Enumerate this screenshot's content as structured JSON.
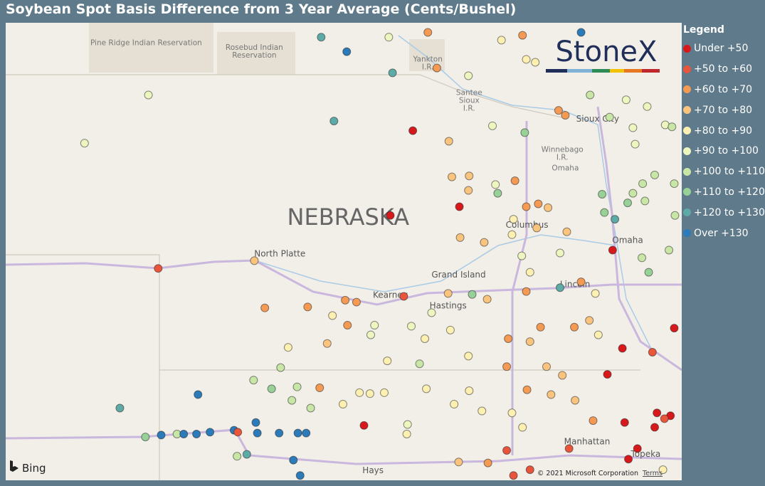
{
  "map": {
    "title": "Soybean Spot Basis Difference from 3 Year Average (Cents/Bushel)",
    "logo": "StoneX",
    "attribution": {
      "provider": "Bing",
      "copyright": "© 2021 Microsoft Corporation",
      "terms": "Terms"
    },
    "lon_lim": [
      -104.08,
      -95.08
    ],
    "lat_lim": [
      38.83,
      43.58
    ],
    "legend": {
      "title": "Legend",
      "bins": [
        {
          "label": "Under +50",
          "color": "#d7191c"
        },
        {
          "label": "+50 to +60",
          "color": "#e8553a"
        },
        {
          "label": "+60 to +70",
          "color": "#f59a53"
        },
        {
          "label": "+70 to +80",
          "color": "#fac47e"
        },
        {
          "label": "+80 to +90",
          "color": "#fdf0b1"
        },
        {
          "label": "+90 to +100",
          "color": "#eef6bf"
        },
        {
          "label": "+100 to +110",
          "color": "#c8e6a5"
        },
        {
          "label": "+110 to +120",
          "color": "#98d198"
        },
        {
          "label": "+120 to +130",
          "color": "#5eaaa6"
        },
        {
          "label": "Over +130",
          "color": "#2b7bba"
        }
      ]
    },
    "labels": [
      {
        "lines": [
          "Pine Ridge Indian Reservation"
        ],
        "lon": -102.21,
        "lat": 43.37,
        "size": "small"
      },
      {
        "lines": [
          "Rosebud Indian",
          "Reservation"
        ],
        "lon": -100.77,
        "lat": 43.28,
        "size": "small"
      },
      {
        "lines": [
          "Yankton",
          "I.R."
        ],
        "lon": -98.46,
        "lat": 43.16,
        "size": "small"
      },
      {
        "lines": [
          "Santee",
          "Sioux",
          "I.R."
        ],
        "lon": -97.91,
        "lat": 42.77,
        "size": "small"
      },
      {
        "lines": [
          "Sioux City"
        ],
        "lon": -96.2,
        "lat": 42.58,
        "size": "city"
      },
      {
        "lines": [
          "Winnebago",
          "I.R."
        ],
        "lon": -96.67,
        "lat": 42.22,
        "size": "small"
      },
      {
        "lines": [
          "Omaha"
        ],
        "lon": -96.63,
        "lat": 42.07,
        "size": "small"
      },
      {
        "lines": [
          "NEBRASKA"
        ],
        "lon": -99.52,
        "lat": 41.55,
        "size": "state"
      },
      {
        "lines": [
          "North Platte"
        ],
        "lon": -100.43,
        "lat": 41.18,
        "size": "city"
      },
      {
        "lines": [
          "Columbus"
        ],
        "lon": -97.14,
        "lat": 41.48,
        "size": "city"
      },
      {
        "lines": [
          "Grand Island"
        ],
        "lon": -98.05,
        "lat": 40.96,
        "size": "city"
      },
      {
        "lines": [
          "Kearney"
        ],
        "lon": -98.96,
        "lat": 40.75,
        "size": "city"
      },
      {
        "lines": [
          "Hastings"
        ],
        "lon": -98.19,
        "lat": 40.64,
        "size": "city"
      },
      {
        "lines": [
          "Lincoln"
        ],
        "lon": -96.5,
        "lat": 40.86,
        "size": "city"
      },
      {
        "lines": [
          "Omaha"
        ],
        "lon": -95.8,
        "lat": 41.32,
        "size": "city"
      },
      {
        "lines": [
          "Manhattan"
        ],
        "lon": -96.34,
        "lat": 39.23,
        "size": "city"
      },
      {
        "lines": [
          "Topeka"
        ],
        "lon": -95.56,
        "lat": 39.1,
        "size": "city"
      },
      {
        "lines": [
          "Hays"
        ],
        "lon": -99.19,
        "lat": 38.93,
        "size": "city"
      }
    ],
    "points": [
      {
        "lon": -99.88,
        "lat": 43.43,
        "bin": 8
      },
      {
        "lon": -99.54,
        "lat": 43.28,
        "bin": 9
      },
      {
        "lon": -98.93,
        "lat": 43.06,
        "bin": 8
      },
      {
        "lon": -98.98,
        "lat": 43.43,
        "bin": 5
      },
      {
        "lon": -98.46,
        "lat": 43.48,
        "bin": 2
      },
      {
        "lon": -98.34,
        "lat": 43.11,
        "bin": 2
      },
      {
        "lon": -97.92,
        "lat": 43.03,
        "bin": 5
      },
      {
        "lon": -102.18,
        "lat": 42.83,
        "bin": 5
      },
      {
        "lon": -103.03,
        "lat": 42.33,
        "bin": 5
      },
      {
        "lon": -99.71,
        "lat": 42.56,
        "bin": 8
      },
      {
        "lon": -98.66,
        "lat": 42.46,
        "bin": 0
      },
      {
        "lon": -98.18,
        "lat": 42.35,
        "bin": 3
      },
      {
        "lon": -97.6,
        "lat": 42.51,
        "bin": 5
      },
      {
        "lon": -97.17,
        "lat": 42.44,
        "bin": 7
      },
      {
        "lon": -97.2,
        "lat": 43.45,
        "bin": 2
      },
      {
        "lon": -96.42,
        "lat": 43.48,
        "bin": 9
      },
      {
        "lon": -97.48,
        "lat": 43.4,
        "bin": 4
      },
      {
        "lon": -97.15,
        "lat": 43.2,
        "bin": 4
      },
      {
        "lon": -97.03,
        "lat": 43.17,
        "bin": 4
      },
      {
        "lon": -96.72,
        "lat": 42.67,
        "bin": 2
      },
      {
        "lon": -96.63,
        "lat": 42.62,
        "bin": 2
      },
      {
        "lon": -96.04,
        "lat": 42.6,
        "bin": 6
      },
      {
        "lon": -96.3,
        "lat": 42.83,
        "bin": 6
      },
      {
        "lon": -95.82,
        "lat": 42.78,
        "bin": 5
      },
      {
        "lon": -95.54,
        "lat": 42.71,
        "bin": 5
      },
      {
        "lon": -95.73,
        "lat": 42.49,
        "bin": 5
      },
      {
        "lon": -95.3,
        "lat": 42.52,
        "bin": 5
      },
      {
        "lon": -95.21,
        "lat": 42.5,
        "bin": 6
      },
      {
        "lon": -95.7,
        "lat": 42.32,
        "bin": 5
      },
      {
        "lon": -95.44,
        "lat": 42.0,
        "bin": 6
      },
      {
        "lon": -95.6,
        "lat": 41.91,
        "bin": 6
      },
      {
        "lon": -95.18,
        "lat": 41.91,
        "bin": 6
      },
      {
        "lon": -96.14,
        "lat": 41.8,
        "bin": 7
      },
      {
        "lon": -96.11,
        "lat": 41.61,
        "bin": 7
      },
      {
        "lon": -95.8,
        "lat": 41.71,
        "bin": 7
      },
      {
        "lon": -95.73,
        "lat": 41.81,
        "bin": 6
      },
      {
        "lon": -95.57,
        "lat": 41.73,
        "bin": 6
      },
      {
        "lon": -95.17,
        "lat": 41.58,
        "bin": 6
      },
      {
        "lon": -95.97,
        "lat": 41.54,
        "bin": 8
      },
      {
        "lon": -96.0,
        "lat": 41.22,
        "bin": 0
      },
      {
        "lon": -95.52,
        "lat": 40.99,
        "bin": 7
      },
      {
        "lon": -95.25,
        "lat": 41.22,
        "bin": 6
      },
      {
        "lon": -95.61,
        "lat": 41.14,
        "bin": 6
      },
      {
        "lon": -95.18,
        "lat": 40.41,
        "bin": 0
      },
      {
        "lon": -95.87,
        "lat": 40.2,
        "bin": 0
      },
      {
        "lon": -95.47,
        "lat": 40.16,
        "bin": 1
      },
      {
        "lon": -96.07,
        "lat": 39.93,
        "bin": 0
      },
      {
        "lon": -95.41,
        "lat": 39.53,
        "bin": 0
      },
      {
        "lon": -95.23,
        "lat": 39.5,
        "bin": 0
      },
      {
        "lon": -95.31,
        "lat": 39.47,
        "bin": 1
      },
      {
        "lon": -95.44,
        "lat": 39.38,
        "bin": 0
      },
      {
        "lon": -95.84,
        "lat": 39.43,
        "bin": 0
      },
      {
        "lon": -95.67,
        "lat": 39.16,
        "bin": 0
      },
      {
        "lon": -95.79,
        "lat": 39.05,
        "bin": 0
      },
      {
        "lon": -96.58,
        "lat": 39.16,
        "bin": 1
      },
      {
        "lon": -96.26,
        "lat": 39.45,
        "bin": 2
      },
      {
        "lon": -97.1,
        "lat": 38.94,
        "bin": 1
      },
      {
        "lon": -97.41,
        "lat": 39.14,
        "bin": 1
      },
      {
        "lon": -97.32,
        "lat": 38.88,
        "bin": 1
      },
      {
        "lon": -97.66,
        "lat": 39.01,
        "bin": 2
      },
      {
        "lon": -98.05,
        "lat": 39.02,
        "bin": 3
      },
      {
        "lon": -98.96,
        "lat": 41.58,
        "bin": 0
      },
      {
        "lon": -98.04,
        "lat": 41.67,
        "bin": 0
      },
      {
        "lon": -97.3,
        "lat": 41.94,
        "bin": 2
      },
      {
        "lon": -98.14,
        "lat": 41.98,
        "bin": 3
      },
      {
        "lon": -97.91,
        "lat": 41.99,
        "bin": 3
      },
      {
        "lon": -97.56,
        "lat": 41.9,
        "bin": 5
      },
      {
        "lon": -97.53,
        "lat": 41.81,
        "bin": 7
      },
      {
        "lon": -97.92,
        "lat": 41.84,
        "bin": 3
      },
      {
        "lon": -98.03,
        "lat": 41.35,
        "bin": 3
      },
      {
        "lon": -97.71,
        "lat": 41.3,
        "bin": 3
      },
      {
        "lon": -97.32,
        "lat": 41.54,
        "bin": 4
      },
      {
        "lon": -97.15,
        "lat": 41.67,
        "bin": 2
      },
      {
        "lon": -96.99,
        "lat": 41.7,
        "bin": 2
      },
      {
        "lon": -96.86,
        "lat": 41.66,
        "bin": 3
      },
      {
        "lon": -97.01,
        "lat": 41.45,
        "bin": 3
      },
      {
        "lon": -97.34,
        "lat": 41.38,
        "bin": 4
      },
      {
        "lon": -96.7,
        "lat": 41.19,
        "bin": 5
      },
      {
        "lon": -96.61,
        "lat": 41.41,
        "bin": 3
      },
      {
        "lon": -97.21,
        "lat": 41.16,
        "bin": 5
      },
      {
        "lon": -97.1,
        "lat": 40.99,
        "bin": 4
      },
      {
        "lon": -97.15,
        "lat": 40.79,
        "bin": 2
      },
      {
        "lon": -96.7,
        "lat": 40.83,
        "bin": 8
      },
      {
        "lon": -96.42,
        "lat": 40.89,
        "bin": 2
      },
      {
        "lon": -96.23,
        "lat": 40.77,
        "bin": 4
      },
      {
        "lon": -96.31,
        "lat": 40.49,
        "bin": 3
      },
      {
        "lon": -96.19,
        "lat": 40.34,
        "bin": 4
      },
      {
        "lon": -96.51,
        "lat": 40.42,
        "bin": 2
      },
      {
        "lon": -96.96,
        "lat": 40.42,
        "bin": 2
      },
      {
        "lon": -97.1,
        "lat": 40.27,
        "bin": 3
      },
      {
        "lon": -97.39,
        "lat": 40.3,
        "bin": 2
      },
      {
        "lon": -97.67,
        "lat": 40.71,
        "bin": 3
      },
      {
        "lon": -97.87,
        "lat": 40.76,
        "bin": 7
      },
      {
        "lon": -98.19,
        "lat": 40.77,
        "bin": 3
      },
      {
        "lon": -98.41,
        "lat": 40.57,
        "bin": 5
      },
      {
        "lon": -98.78,
        "lat": 40.74,
        "bin": 1
      },
      {
        "lon": -99.56,
        "lat": 40.7,
        "bin": 2
      },
      {
        "lon": -99.41,
        "lat": 40.68,
        "bin": 2
      },
      {
        "lon": -100.63,
        "lat": 40.62,
        "bin": 2
      },
      {
        "lon": -100.06,
        "lat": 40.63,
        "bin": 2
      },
      {
        "lon": -99.73,
        "lat": 40.54,
        "bin": 4
      },
      {
        "lon": -99.53,
        "lat": 40.44,
        "bin": 2
      },
      {
        "lon": -99.22,
        "lat": 40.34,
        "bin": 5
      },
      {
        "lon": -99.17,
        "lat": 40.44,
        "bin": 5
      },
      {
        "lon": -98.68,
        "lat": 40.43,
        "bin": 5
      },
      {
        "lon": -98.5,
        "lat": 40.3,
        "bin": 4
      },
      {
        "lon": -98.16,
        "lat": 40.39,
        "bin": 4
      },
      {
        "lon": -100.32,
        "lat": 40.21,
        "bin": 4
      },
      {
        "lon": -99.8,
        "lat": 40.25,
        "bin": 3
      },
      {
        "lon": -99.0,
        "lat": 40.07,
        "bin": 4
      },
      {
        "lon": -98.57,
        "lat": 40.04,
        "bin": 6
      },
      {
        "lon": -97.92,
        "lat": 40.12,
        "bin": 4
      },
      {
        "lon": -97.41,
        "lat": 40.01,
        "bin": 2
      },
      {
        "lon": -96.88,
        "lat": 40.01,
        "bin": 3
      },
      {
        "lon": -96.67,
        "lat": 39.92,
        "bin": 3
      },
      {
        "lon": -96.5,
        "lat": 39.66,
        "bin": 3
      },
      {
        "lon": -97.14,
        "lat": 39.77,
        "bin": 2
      },
      {
        "lon": -96.82,
        "lat": 39.72,
        "bin": 3
      },
      {
        "lon": -97.2,
        "lat": 39.38,
        "bin": 4
      },
      {
        "lon": -97.91,
        "lat": 39.76,
        "bin": 4
      },
      {
        "lon": -98.48,
        "lat": 39.78,
        "bin": 4
      },
      {
        "lon": -99.04,
        "lat": 39.74,
        "bin": 4
      },
      {
        "lon": -99.23,
        "lat": 39.73,
        "bin": 4
      },
      {
        "lon": -99.37,
        "lat": 39.74,
        "bin": 4
      },
      {
        "lon": -99.59,
        "lat": 39.62,
        "bin": 4
      },
      {
        "lon": -99.9,
        "lat": 39.79,
        "bin": 2
      },
      {
        "lon": -100.42,
        "lat": 40.0,
        "bin": 6
      },
      {
        "lon": -100.78,
        "lat": 39.87,
        "bin": 6
      },
      {
        "lon": -100.54,
        "lat": 39.78,
        "bin": 7
      },
      {
        "lon": -100.2,
        "lat": 39.8,
        "bin": 6
      },
      {
        "lon": -100.27,
        "lat": 39.66,
        "bin": 6
      },
      {
        "lon": -100.02,
        "lat": 39.58,
        "bin": 6
      },
      {
        "lon": -99.31,
        "lat": 39.4,
        "bin": 0
      },
      {
        "lon": -98.73,
        "lat": 39.41,
        "bin": 5
      },
      {
        "lon": -98.11,
        "lat": 39.62,
        "bin": 4
      },
      {
        "lon": -97.74,
        "lat": 39.55,
        "bin": 4
      },
      {
        "lon": -97.34,
        "lat": 39.53,
        "bin": 4
      },
      {
        "lon": -101.52,
        "lat": 39.72,
        "bin": 9
      },
      {
        "lon": -102.56,
        "lat": 39.58,
        "bin": 8
      },
      {
        "lon": -102.05,
        "lat": 41.03,
        "bin": 1
      },
      {
        "lon": -100.77,
        "lat": 41.11,
        "bin": 3
      },
      {
        "lon": -102.22,
        "lat": 39.28,
        "bin": 7
      },
      {
        "lon": -102.01,
        "lat": 39.3,
        "bin": 9
      },
      {
        "lon": -101.8,
        "lat": 39.31,
        "bin": 6
      },
      {
        "lon": -101.71,
        "lat": 39.31,
        "bin": 9
      },
      {
        "lon": -101.54,
        "lat": 39.31,
        "bin": 9
      },
      {
        "lon": -101.36,
        "lat": 39.33,
        "bin": 9
      },
      {
        "lon": -101.04,
        "lat": 39.35,
        "bin": 9
      },
      {
        "lon": -100.99,
        "lat": 39.33,
        "bin": 1
      },
      {
        "lon": -100.75,
        "lat": 39.43,
        "bin": 9
      },
      {
        "lon": -100.73,
        "lat": 39.32,
        "bin": 9
      },
      {
        "lon": -100.44,
        "lat": 39.32,
        "bin": 9
      },
      {
        "lon": -100.19,
        "lat": 39.32,
        "bin": 9
      },
      {
        "lon": -100.08,
        "lat": 39.32,
        "bin": 9
      },
      {
        "lon": -100.87,
        "lat": 39.1,
        "bin": 8
      },
      {
        "lon": -101.0,
        "lat": 39.08,
        "bin": 6
      },
      {
        "lon": -100.25,
        "lat": 39.04,
        "bin": 9
      },
      {
        "lon": -100.16,
        "lat": 38.88,
        "bin": 9
      },
      {
        "lon": -98.74,
        "lat": 39.31,
        "bin": 4
      },
      {
        "lon": -95.33,
        "lat": 38.94,
        "bin": 4
      }
    ]
  }
}
